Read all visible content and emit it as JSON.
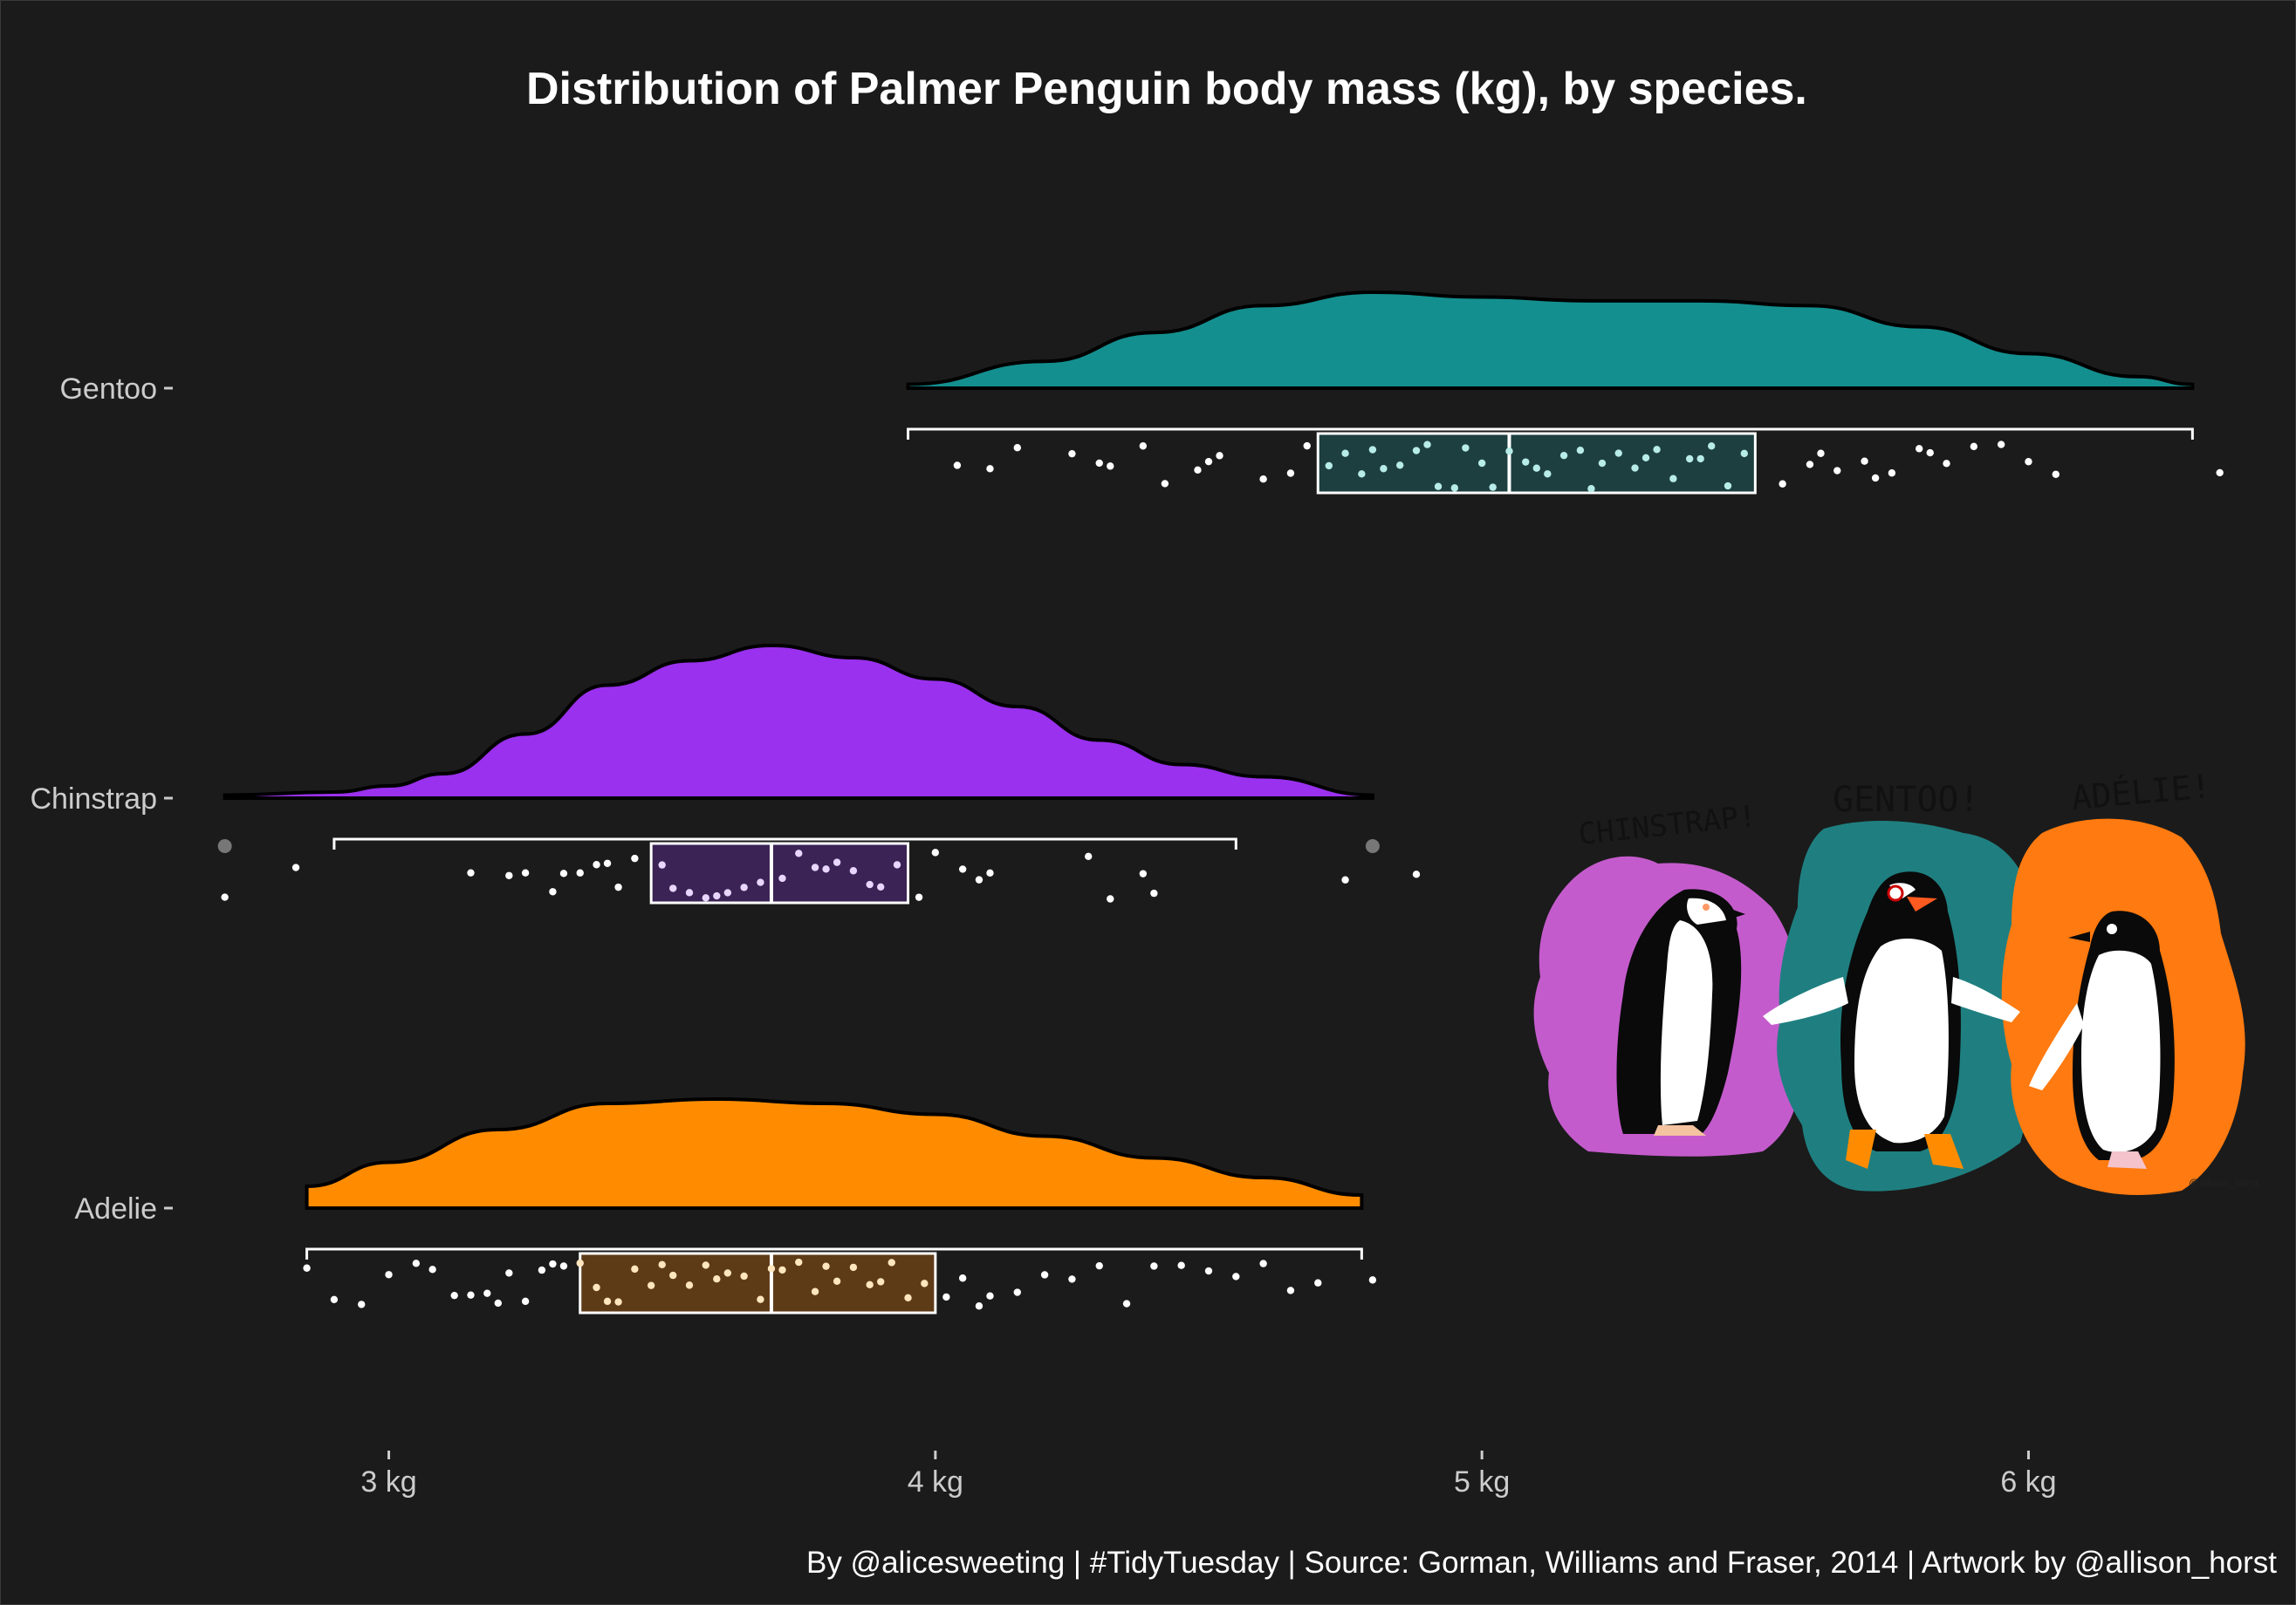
{
  "title": "Distribution of Palmer Penguin body mass (kg), by species.",
  "caption": "By @alicesweeting | #TidyTuesday | Source: Gorman, Williams and Fraser, 2014 | Artwork by @allison_horst",
  "artwork": {
    "labels": [
      "CHINSTRAP!",
      "GENTOO!",
      "ADÉLIE!"
    ],
    "signature": "@allison_horst",
    "colors": {
      "chinstrap": "#c45bcc",
      "gentoo": "#1f7f80",
      "adelie": "#ff7a10"
    }
  },
  "chart_data": {
    "type": "raincloud",
    "title": "Distribution of Palmer Penguin body mass (kg), by species.",
    "xlabel": "",
    "ylabel": "",
    "xlim": [
      2.6,
      6.4
    ],
    "x_ticks": [
      3,
      4,
      5,
      6
    ],
    "x_tick_labels": [
      "3 kg",
      "4 kg",
      "5 kg",
      "6 kg"
    ],
    "grid": false,
    "series": [
      {
        "name": "Gentoo",
        "color": "#148f8f",
        "box_fill": "#1e3f40",
        "point_fill": "#b7ece8",
        "density": {
          "x": [
            3.95,
            4.2,
            4.4,
            4.6,
            4.8,
            5.0,
            5.2,
            5.4,
            5.6,
            5.8,
            6.0,
            6.2,
            6.3
          ],
          "y": [
            0.04,
            0.28,
            0.58,
            0.86,
            1.0,
            0.95,
            0.91,
            0.91,
            0.86,
            0.64,
            0.36,
            0.12,
            0.04
          ]
        },
        "box": {
          "whisker_low": 3.95,
          "q1": 4.7,
          "median": 5.05,
          "q3": 5.5,
          "whisker_high": 6.3
        },
        "outliers": [],
        "points": [
          4.04,
          4.1,
          4.15,
          4.25,
          4.3,
          4.32,
          4.38,
          4.42,
          4.48,
          4.5,
          4.52,
          4.6,
          4.65,
          4.68,
          4.72,
          4.75,
          4.78,
          4.8,
          4.82,
          4.85,
          4.88,
          4.9,
          4.92,
          4.95,
          4.97,
          5.0,
          5.02,
          5.05,
          5.08,
          5.1,
          5.12,
          5.15,
          5.18,
          5.2,
          5.22,
          5.25,
          5.28,
          5.3,
          5.32,
          5.35,
          5.38,
          5.4,
          5.42,
          5.45,
          5.48,
          5.55,
          5.6,
          5.62,
          5.65,
          5.7,
          5.72,
          5.75,
          5.8,
          5.82,
          5.85,
          5.9,
          5.95,
          6.0,
          6.05,
          6.35
        ]
      },
      {
        "name": "Chinstrap",
        "color": "#9a31ee",
        "box_fill": "#3b2356",
        "point_fill": "#e8d6ff",
        "density": {
          "x": [
            2.7,
            2.9,
            3.0,
            3.1,
            3.25,
            3.4,
            3.55,
            3.7,
            3.85,
            4.0,
            4.15,
            4.3,
            4.45,
            4.6,
            4.8
          ],
          "y": [
            0.02,
            0.04,
            0.08,
            0.16,
            0.42,
            0.74,
            0.9,
            1.0,
            0.92,
            0.78,
            0.6,
            0.38,
            0.22,
            0.14,
            0.02
          ]
        },
        "box": {
          "whisker_low": 2.9,
          "q1": 3.48,
          "median": 3.7,
          "q3": 3.95,
          "whisker_high": 4.55
        },
        "outliers": [
          2.7,
          4.8
        ],
        "points": [
          2.7,
          2.83,
          3.15,
          3.22,
          3.25,
          3.3,
          3.32,
          3.35,
          3.38,
          3.4,
          3.42,
          3.45,
          3.5,
          3.52,
          3.55,
          3.58,
          3.6,
          3.62,
          3.65,
          3.68,
          3.72,
          3.75,
          3.78,
          3.8,
          3.82,
          3.85,
          3.88,
          3.9,
          3.93,
          3.97,
          4.0,
          4.05,
          4.08,
          4.1,
          4.28,
          4.32,
          4.38,
          4.4,
          4.75,
          4.88
        ]
      },
      {
        "name": "Adelie",
        "color": "#ff8c00",
        "box_fill": "#5e3b17",
        "point_fill": "#ffe6bf",
        "density": {
          "x": [
            2.85,
            3.0,
            3.2,
            3.4,
            3.6,
            3.8,
            4.0,
            4.2,
            4.4,
            4.6,
            4.78
          ],
          "y": [
            0.2,
            0.42,
            0.72,
            0.96,
            1.0,
            0.96,
            0.86,
            0.66,
            0.46,
            0.28,
            0.12
          ]
        },
        "box": {
          "whisker_low": 2.85,
          "q1": 3.35,
          "median": 3.7,
          "q3": 4.0,
          "whisker_high": 4.78
        },
        "outliers": [],
        "points": [
          2.85,
          2.9,
          2.95,
          3.0,
          3.05,
          3.08,
          3.12,
          3.15,
          3.18,
          3.2,
          3.22,
          3.25,
          3.28,
          3.3,
          3.32,
          3.35,
          3.38,
          3.4,
          3.42,
          3.45,
          3.48,
          3.5,
          3.52,
          3.55,
          3.58,
          3.6,
          3.62,
          3.65,
          3.68,
          3.7,
          3.72,
          3.75,
          3.78,
          3.8,
          3.82,
          3.85,
          3.88,
          3.9,
          3.92,
          3.95,
          3.98,
          4.02,
          4.05,
          4.08,
          4.1,
          4.15,
          4.2,
          4.25,
          4.3,
          4.35,
          4.4,
          4.45,
          4.5,
          4.55,
          4.6,
          4.65,
          4.7,
          4.8
        ]
      }
    ]
  }
}
